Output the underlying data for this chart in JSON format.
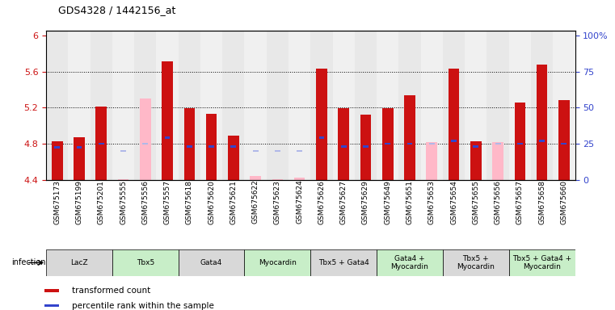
{
  "title": "GDS4328 / 1442156_at",
  "ylim": [
    4.4,
    6.05
  ],
  "y_ticks_left": [
    4.4,
    4.8,
    5.2,
    5.6,
    6.0
  ],
  "y_ticks_left_labels": [
    "4.4",
    "4.8",
    "5.2",
    "5.6",
    "6"
  ],
  "y_ticks_right_labels": [
    "0",
    "25",
    "50",
    "75",
    "100%"
  ],
  "dotted_lines": [
    4.8,
    5.2,
    5.6
  ],
  "samples": [
    "GSM675173",
    "GSM675199",
    "GSM675201",
    "GSM675555",
    "GSM675556",
    "GSM675557",
    "GSM675618",
    "GSM675620",
    "GSM675621",
    "GSM675622",
    "GSM675623",
    "GSM675624",
    "GSM675626",
    "GSM675627",
    "GSM675629",
    "GSM675649",
    "GSM675651",
    "GSM675653",
    "GSM675654",
    "GSM675655",
    "GSM675656",
    "GSM675657",
    "GSM675658",
    "GSM675660"
  ],
  "bar_values": [
    4.83,
    4.87,
    5.21,
    4.41,
    5.3,
    5.71,
    5.19,
    5.13,
    4.89,
    4.44,
    4.41,
    4.42,
    5.63,
    5.19,
    5.12,
    5.19,
    5.34,
    4.82,
    5.63,
    4.83,
    4.82,
    5.26,
    5.68,
    5.28
  ],
  "rank_values": [
    4.76,
    4.76,
    4.8,
    4.72,
    4.8,
    4.87,
    4.77,
    4.77,
    4.77,
    4.72,
    4.72,
    4.72,
    4.87,
    4.77,
    4.77,
    4.8,
    4.8,
    4.8,
    4.83,
    4.77,
    4.8,
    4.8,
    4.83,
    4.8
  ],
  "absent": [
    false,
    false,
    false,
    true,
    true,
    false,
    false,
    false,
    false,
    true,
    true,
    true,
    false,
    false,
    false,
    false,
    false,
    true,
    false,
    false,
    true,
    false,
    false,
    false
  ],
  "bar_color": "#cc1111",
  "absent_bar_color": "#ffb8c8",
  "rank_color": "#3344cc",
  "absent_rank_color": "#b0b8e8",
  "bar_baseline": 4.4,
  "bar_width": 0.5,
  "groups": [
    {
      "label": "LacZ",
      "start": 0,
      "end": 3,
      "color": "#d8d8d8"
    },
    {
      "label": "Tbx5",
      "start": 3,
      "end": 6,
      "color": "#c8eec8"
    },
    {
      "label": "Gata4",
      "start": 6,
      "end": 9,
      "color": "#d8d8d8"
    },
    {
      "label": "Myocardin",
      "start": 9,
      "end": 12,
      "color": "#c8eec8"
    },
    {
      "label": "Tbx5 + Gata4",
      "start": 12,
      "end": 15,
      "color": "#d8d8d8"
    },
    {
      "label": "Gata4 +\nMyocardin",
      "start": 15,
      "end": 18,
      "color": "#c8eec8"
    },
    {
      "label": "Tbx5 +\nMyocardin",
      "start": 18,
      "end": 21,
      "color": "#d8d8d8"
    },
    {
      "label": "Tbx5 + Gata4 +\nMyocardin",
      "start": 21,
      "end": 24,
      "color": "#c8eec8"
    }
  ],
  "ylabel_color": "#cc1111",
  "right_ylabel_color": "#3344cc",
  "background_color": "#ffffff",
  "col_bg_odd": "#e8e8e8",
  "col_bg_even": "#f0f0f0"
}
